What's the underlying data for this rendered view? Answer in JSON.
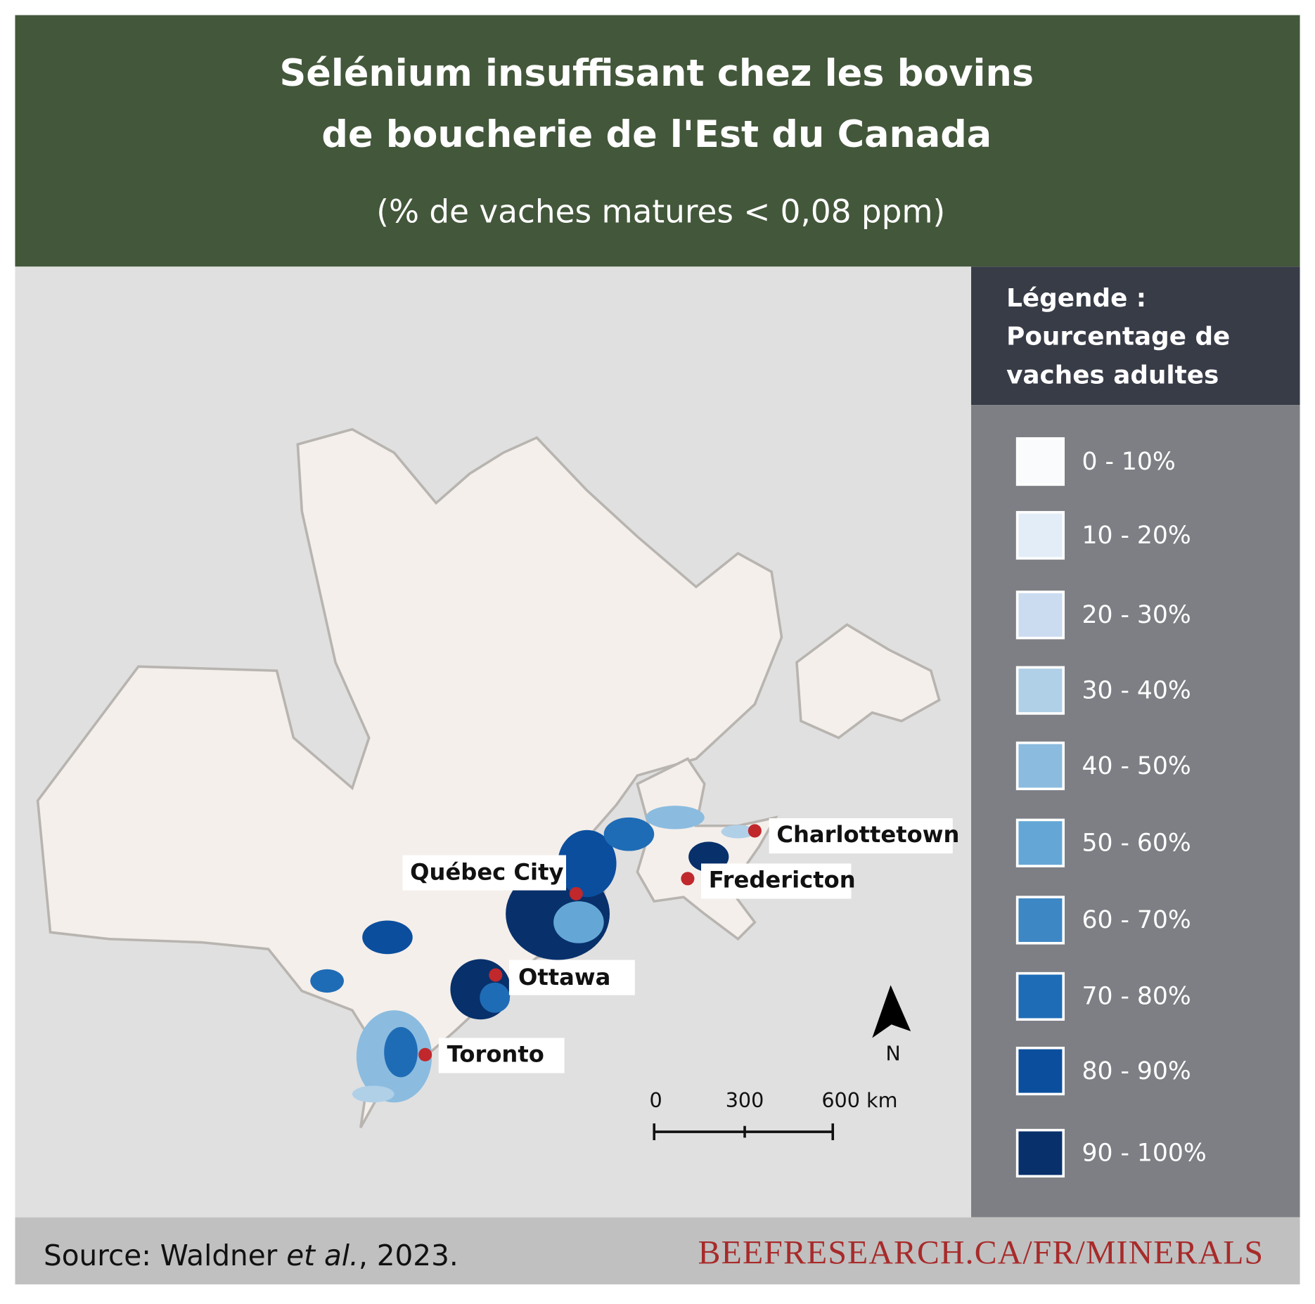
{
  "header": {
    "title_lines": [
      "Sélénium insuffisant chez les bovins",
      "de boucherie de l'Est du Canada"
    ],
    "subtitle": "(% de vaches matures < 0,08 ppm)"
  },
  "legend": {
    "title_lines": [
      "Légende :",
      "Pourcentage de",
      "vaches adultes"
    ],
    "items": [
      {
        "label": "0 - 10%",
        "color": "#f9fbfd"
      },
      {
        "label": "10 - 20%",
        "color": "#e3edf7"
      },
      {
        "label": "20 - 30%",
        "color": "#cbdcf1"
      },
      {
        "label": "30 - 40%",
        "color": "#b0d0e8"
      },
      {
        "label": "40 - 50%",
        "color": "#8bbcdf"
      },
      {
        "label": "50 - 60%",
        "color": "#64a7d6"
      },
      {
        "label": "60 - 70%",
        "color": "#3d87c5"
      },
      {
        "label": "70 - 80%",
        "color": "#1f6cb6"
      },
      {
        "label": "80 - 90%",
        "color": "#0b4e9e"
      },
      {
        "label": "90 - 100%",
        "color": "#08306b"
      }
    ]
  },
  "map": {
    "cities": [
      "Québec City",
      "Ottawa",
      "Toronto",
      "Fredericton",
      "Charlottetown"
    ],
    "north_label": "N",
    "scale_labels": [
      "0",
      "300",
      "600 km"
    ]
  },
  "footer": {
    "source": [
      "Source: Waldner ",
      "et al.",
      ", 2023."
    ],
    "website": "BEEFRESEARCH.CA/FR/MINERALS"
  }
}
